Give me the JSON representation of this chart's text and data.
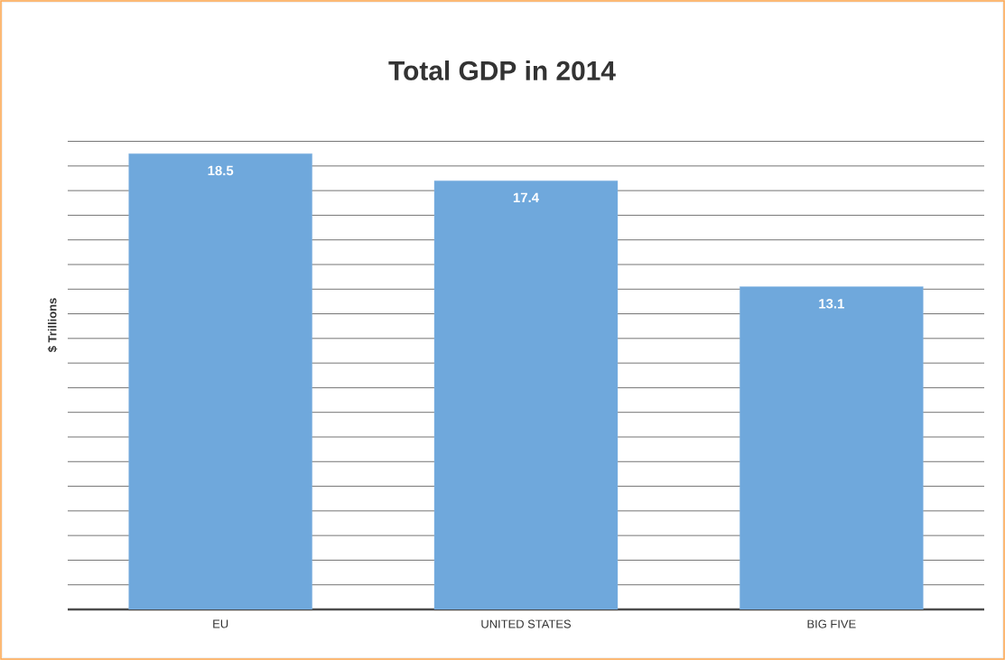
{
  "chart_data": {
    "type": "bar",
    "title": "Total GDP in 2014",
    "ylabel": "$ Trillions",
    "categories": [
      "EU",
      "UNITED STATES",
      "BIG FIVE"
    ],
    "values": [
      18.5,
      17.4,
      13.1
    ],
    "color": "#6fa8dc",
    "grid": "y",
    "tick_labels": "x",
    "data_labels": true
  }
}
